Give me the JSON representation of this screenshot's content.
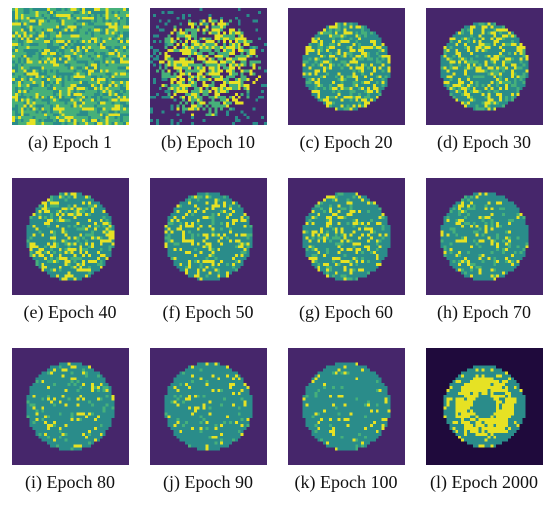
{
  "panels": [
    {
      "label": "(a) Epoch 1",
      "pattern": "noise"
    },
    {
      "label": "(b) Epoch 10",
      "pattern": "blob"
    },
    {
      "label": "(c) Epoch 20",
      "pattern": "disk"
    },
    {
      "label": "(d) Epoch 30",
      "pattern": "disk"
    },
    {
      "label": "(e) Epoch 40",
      "pattern": "disk"
    },
    {
      "label": "(f) Epoch 50",
      "pattern": "disk"
    },
    {
      "label": "(g) Epoch 60",
      "pattern": "disk"
    },
    {
      "label": "(h) Epoch 70",
      "pattern": "disk"
    },
    {
      "label": "(i) Epoch 80",
      "pattern": "disk"
    },
    {
      "label": "(j) Epoch 90",
      "pattern": "disk"
    },
    {
      "label": "(k) Epoch 100",
      "pattern": "disk"
    },
    {
      "label": "(l) Epoch 2000",
      "pattern": "final"
    }
  ],
  "colors": {
    "background": "#46266b",
    "disk": "#2a8c8a",
    "highlight": "#e6e224",
    "midtone": "#46b07a"
  }
}
